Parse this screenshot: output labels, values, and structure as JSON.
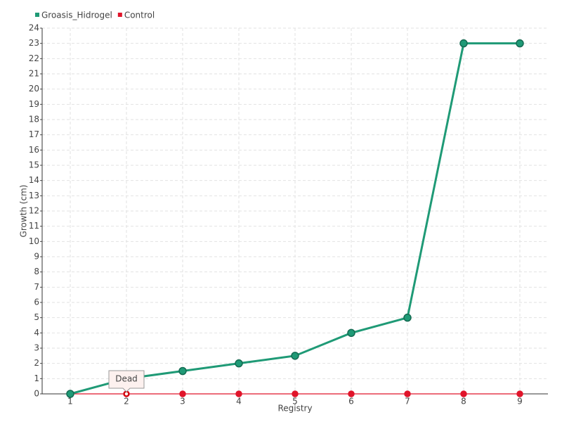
{
  "chart_data": {
    "type": "line",
    "categories": [
      "1",
      "2",
      "3",
      "4",
      "5",
      "6",
      "7",
      "8",
      "9"
    ],
    "series": [
      {
        "name": "Groasis_Hidrogel",
        "color": "#1f9a76",
        "values": [
          0,
          1,
          1.5,
          2,
          2.5,
          4,
          5,
          23,
          23
        ]
      },
      {
        "name": "Control",
        "color": "#e0142a",
        "values": [
          0,
          0,
          0,
          0,
          0,
          0,
          0,
          0,
          0
        ]
      }
    ],
    "x_label": "Registry",
    "y_label": "Growth (cm)",
    "ylim": [
      0,
      24
    ],
    "yticks": [
      0,
      1,
      2,
      3,
      4,
      5,
      6,
      7,
      8,
      9,
      10,
      11,
      12,
      13,
      14,
      15,
      16,
      17,
      18,
      19,
      20,
      21,
      22,
      23,
      24
    ],
    "grid": true,
    "legend": "top-left",
    "annotation": "Dead"
  }
}
